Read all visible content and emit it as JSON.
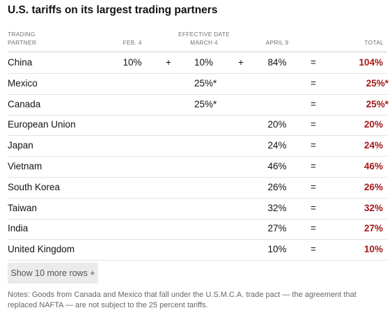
{
  "title": "U.S. tariffs on its largest trading partners",
  "headers": {
    "partner_line1": "TRADING",
    "partner_line2": "PARTNER",
    "effective_date": "EFFECTIVE DATE",
    "feb": "FEB. 4",
    "march": "MARCH 4",
    "april": "APRIL 9",
    "total": "TOTAL"
  },
  "rows": [
    {
      "partner": "China",
      "feb": "10%",
      "plus1": "+",
      "march": "10%",
      "plus2": "+",
      "april": "84%",
      "eq": "=",
      "total": "104%"
    },
    {
      "partner": "Mexico",
      "feb": "",
      "plus1": "",
      "march": "25%*",
      "plus2": "",
      "april": "",
      "eq": "=",
      "total": "25%*"
    },
    {
      "partner": "Canada",
      "feb": "",
      "plus1": "",
      "march": "25%*",
      "plus2": "",
      "april": "",
      "eq": "=",
      "total": "25%*"
    },
    {
      "partner": "European Union",
      "feb": "",
      "plus1": "",
      "march": "",
      "plus2": "",
      "april": "20%",
      "eq": "=",
      "total": "20%"
    },
    {
      "partner": "Japan",
      "feb": "",
      "plus1": "",
      "march": "",
      "plus2": "",
      "april": "24%",
      "eq": "=",
      "total": "24%"
    },
    {
      "partner": "Vietnam",
      "feb": "",
      "plus1": "",
      "march": "",
      "plus2": "",
      "april": "46%",
      "eq": "=",
      "total": "46%"
    },
    {
      "partner": "South Korea",
      "feb": "",
      "plus1": "",
      "march": "",
      "plus2": "",
      "april": "26%",
      "eq": "=",
      "total": "26%"
    },
    {
      "partner": "Taiwan",
      "feb": "",
      "plus1": "",
      "march": "",
      "plus2": "",
      "april": "32%",
      "eq": "=",
      "total": "32%"
    },
    {
      "partner": "India",
      "feb": "",
      "plus1": "",
      "march": "",
      "plus2": "",
      "april": "27%",
      "eq": "=",
      "total": "27%"
    },
    {
      "partner": "United Kingdom",
      "feb": "",
      "plus1": "",
      "march": "",
      "plus2": "",
      "april": "10%",
      "eq": "=",
      "total": "10%"
    }
  ],
  "show_more_label": "Show 10 more rows +",
  "notes": "Notes: Goods from Canada and Mexico that fall under the U.S.M.C.A. trade pact — the agreement that replaced NAFTA — are not subject to the 25 percent tariffs.",
  "colors": {
    "total": "#a31818",
    "rule": "#e2e2e2"
  }
}
